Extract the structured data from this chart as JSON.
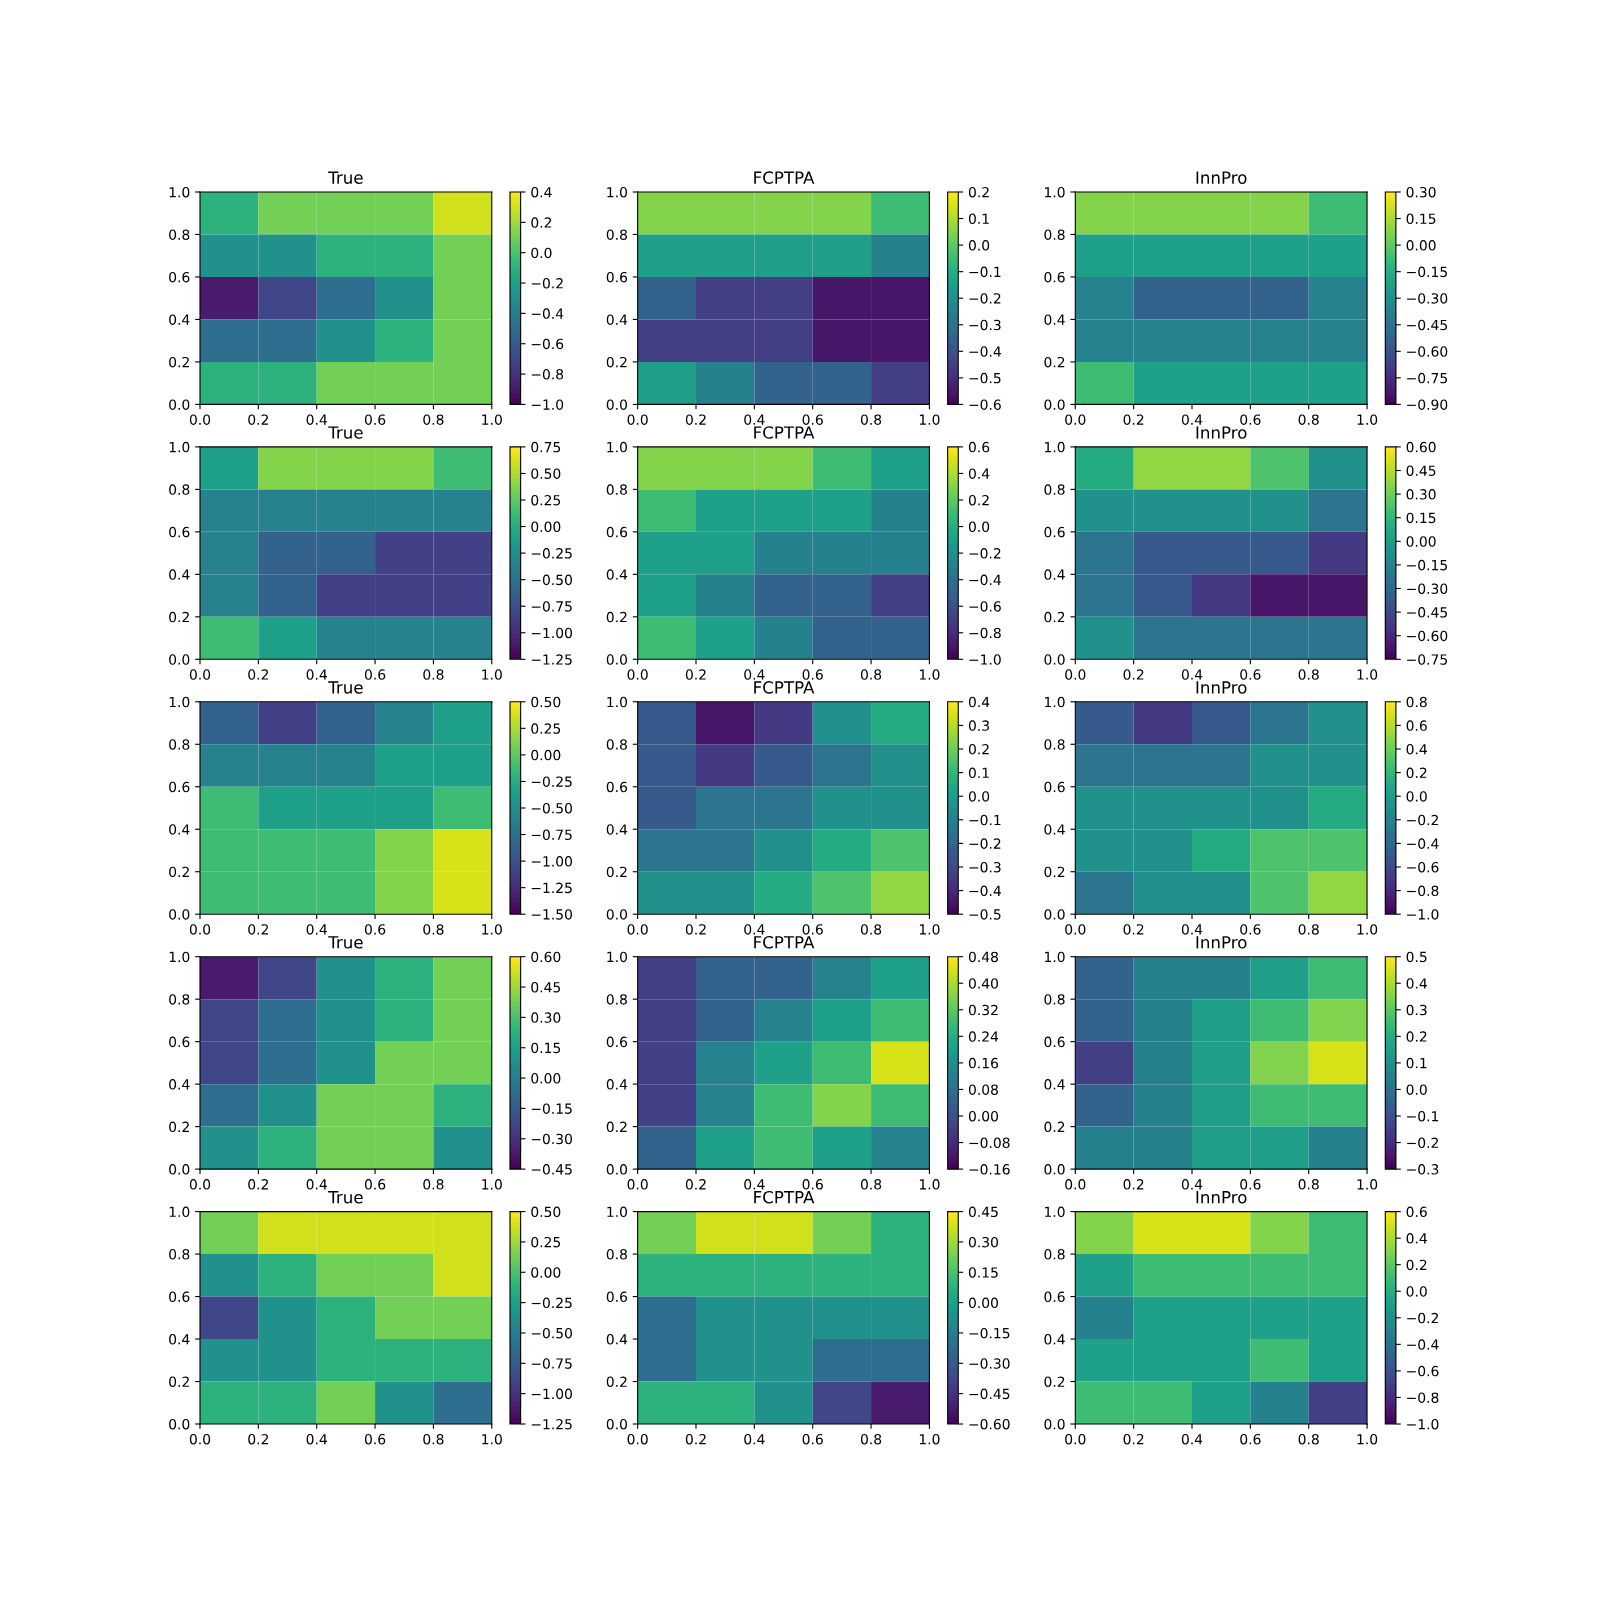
{
  "chart_data": [
    {
      "type": "heatmap",
      "title": "True",
      "x": [
        0.1,
        0.3,
        0.5,
        0.7,
        0.9
      ],
      "y": [
        0.9,
        0.7,
        0.5,
        0.3,
        0.1
      ],
      "xlim": [
        0,
        1
      ],
      "ylim": [
        0,
        1
      ],
      "xticks": [
        {
          "value": 0,
          "label": "0.0"
        },
        {
          "value": 0.2,
          "label": "0.2"
        },
        {
          "value": 0.4,
          "label": "0.4"
        },
        {
          "value": 0.6,
          "label": "0.6"
        },
        {
          "value": 0.8,
          "label": "0.8"
        },
        {
          "value": 1,
          "label": "1.0"
        }
      ],
      "yticks": [
        {
          "value": 0,
          "label": "0.0"
        },
        {
          "value": 0.2,
          "label": "0.2"
        },
        {
          "value": 0.4,
          "label": "0.4"
        },
        {
          "value": 0.6,
          "label": "0.6"
        },
        {
          "value": 0.8,
          "label": "0.8"
        },
        {
          "value": 1,
          "label": "1.0"
        }
      ],
      "clim": [
        -1.0,
        0.4
      ],
      "cticks": [
        {
          "value": -1.0,
          "label": "−1.0"
        },
        {
          "value": -0.8,
          "label": "−0.8"
        },
        {
          "value": -0.6,
          "label": "−0.6"
        },
        {
          "value": -0.4,
          "label": "−0.4"
        },
        {
          "value": -0.2,
          "label": "−0.2"
        },
        {
          "value": 0,
          "label": "0.0"
        },
        {
          "value": 0.2,
          "label": "0.2"
        },
        {
          "value": 0.4,
          "label": "0.4"
        }
      ],
      "cells": [
        [
          -0.1,
          0.1,
          0.1,
          0.1,
          0.3
        ],
        [
          -0.3,
          -0.3,
          -0.1,
          -0.1,
          0.1
        ],
        [
          -0.9,
          -0.7,
          -0.5,
          -0.3,
          0.1
        ],
        [
          -0.5,
          -0.5,
          -0.3,
          -0.1,
          0.1
        ],
        [
          -0.1,
          -0.1,
          0.1,
          0.1,
          0.1
        ]
      ]
    },
    {
      "type": "heatmap",
      "title": "FCPTPA",
      "x": [
        0.1,
        0.3,
        0.5,
        0.7,
        0.9
      ],
      "y": [
        0.9,
        0.7,
        0.5,
        0.3,
        0.1
      ],
      "xlim": [
        0,
        1
      ],
      "ylim": [
        0,
        1
      ],
      "xticks": [
        {
          "value": 0,
          "label": "0.0"
        },
        {
          "value": 0.2,
          "label": "0.2"
        },
        {
          "value": 0.4,
          "label": "0.4"
        },
        {
          "value": 0.6,
          "label": "0.6"
        },
        {
          "value": 0.8,
          "label": "0.8"
        },
        {
          "value": 1,
          "label": "1.0"
        }
      ],
      "yticks": [
        {
          "value": 0,
          "label": "0.0"
        },
        {
          "value": 0.2,
          "label": "0.2"
        },
        {
          "value": 0.4,
          "label": "0.4"
        },
        {
          "value": 0.6,
          "label": "0.6"
        },
        {
          "value": 0.8,
          "label": "0.8"
        },
        {
          "value": 1,
          "label": "1.0"
        }
      ],
      "clim": [
        -0.6,
        0.2
      ],
      "cticks": [
        {
          "value": -0.6,
          "label": "−0.6"
        },
        {
          "value": -0.5,
          "label": "−0.5"
        },
        {
          "value": -0.4,
          "label": "−0.4"
        },
        {
          "value": -0.3,
          "label": "−0.3"
        },
        {
          "value": -0.2,
          "label": "−0.2"
        },
        {
          "value": -0.1,
          "label": "−0.1"
        },
        {
          "value": 0,
          "label": "0.0"
        },
        {
          "value": 0.1,
          "label": "0.1"
        },
        {
          "value": 0.2,
          "label": "0.2"
        }
      ],
      "cells": [
        [
          0.05,
          0.05,
          0.05,
          0.05,
          -0.05
        ],
        [
          -0.15,
          -0.15,
          -0.15,
          -0.15,
          -0.25
        ],
        [
          -0.35,
          -0.45,
          -0.45,
          -0.55,
          -0.55
        ],
        [
          -0.45,
          -0.45,
          -0.45,
          -0.55,
          -0.55
        ],
        [
          -0.15,
          -0.25,
          -0.35,
          -0.35,
          -0.45
        ]
      ]
    },
    {
      "type": "heatmap",
      "title": "InnPro",
      "x": [
        0.1,
        0.3,
        0.5,
        0.7,
        0.9
      ],
      "y": [
        0.9,
        0.7,
        0.5,
        0.3,
        0.1
      ],
      "xlim": [
        0,
        1
      ],
      "ylim": [
        0,
        1
      ],
      "xticks": [
        {
          "value": 0,
          "label": "0.0"
        },
        {
          "value": 0.2,
          "label": "0.2"
        },
        {
          "value": 0.4,
          "label": "0.4"
        },
        {
          "value": 0.6,
          "label": "0.6"
        },
        {
          "value": 0.8,
          "label": "0.8"
        },
        {
          "value": 1,
          "label": "1.0"
        }
      ],
      "yticks": [
        {
          "value": 0,
          "label": "0.0"
        },
        {
          "value": 0.2,
          "label": "0.2"
        },
        {
          "value": 0.4,
          "label": "0.4"
        },
        {
          "value": 0.6,
          "label": "0.6"
        },
        {
          "value": 0.8,
          "label": "0.8"
        },
        {
          "value": 1,
          "label": "1.0"
        }
      ],
      "clim": [
        -0.9,
        0.3
      ],
      "cticks": [
        {
          "value": -0.9,
          "label": "−0.90"
        },
        {
          "value": -0.75,
          "label": "−0.75"
        },
        {
          "value": -0.6,
          "label": "−0.60"
        },
        {
          "value": -0.45,
          "label": "−0.45"
        },
        {
          "value": -0.3,
          "label": "−0.30"
        },
        {
          "value": -0.15,
          "label": "−0.15"
        },
        {
          "value": 0,
          "label": "0.00"
        },
        {
          "value": 0.15,
          "label": "0.15"
        },
        {
          "value": 0.3,
          "label": "0.30"
        }
      ],
      "cells": [
        [
          0.075,
          0.075,
          0.075,
          0.075,
          -0.075
        ],
        [
          -0.225,
          -0.225,
          -0.225,
          -0.225,
          -0.225
        ],
        [
          -0.375,
          -0.525,
          -0.525,
          -0.525,
          -0.375
        ],
        [
          -0.375,
          -0.375,
          -0.375,
          -0.375,
          -0.375
        ],
        [
          -0.075,
          -0.225,
          -0.225,
          -0.225,
          -0.225
        ]
      ]
    },
    {
      "type": "heatmap",
      "title": "True",
      "x": [
        0.1,
        0.3,
        0.5,
        0.7,
        0.9
      ],
      "y": [
        0.9,
        0.7,
        0.5,
        0.3,
        0.1
      ],
      "xlim": [
        0,
        1
      ],
      "ylim": [
        0,
        1
      ],
      "xticks": [
        {
          "value": 0,
          "label": "0.0"
        },
        {
          "value": 0.2,
          "label": "0.2"
        },
        {
          "value": 0.4,
          "label": "0.4"
        },
        {
          "value": 0.6,
          "label": "0.6"
        },
        {
          "value": 0.8,
          "label": "0.8"
        },
        {
          "value": 1,
          "label": "1.0"
        }
      ],
      "yticks": [
        {
          "value": 0,
          "label": "0.0"
        },
        {
          "value": 0.2,
          "label": "0.2"
        },
        {
          "value": 0.4,
          "label": "0.4"
        },
        {
          "value": 0.6,
          "label": "0.6"
        },
        {
          "value": 0.8,
          "label": "0.8"
        },
        {
          "value": 1,
          "label": "1.0"
        }
      ],
      "clim": [
        -1.25,
        0.75
      ],
      "cticks": [
        {
          "value": -1.25,
          "label": "−1.25"
        },
        {
          "value": -1.0,
          "label": "−1.00"
        },
        {
          "value": -0.75,
          "label": "−0.75"
        },
        {
          "value": -0.5,
          "label": "−0.50"
        },
        {
          "value": -0.25,
          "label": "−0.25"
        },
        {
          "value": 0,
          "label": "0.00"
        },
        {
          "value": 0.25,
          "label": "0.25"
        },
        {
          "value": 0.5,
          "label": "0.50"
        },
        {
          "value": 0.75,
          "label": "0.75"
        }
      ],
      "cells": [
        [
          -0.125,
          0.375,
          0.375,
          0.375,
          0.125
        ],
        [
          -0.375,
          -0.375,
          -0.375,
          -0.375,
          -0.375
        ],
        [
          -0.375,
          -0.625,
          -0.625,
          -0.875,
          -0.875
        ],
        [
          -0.375,
          -0.625,
          -0.875,
          -0.875,
          -0.875
        ],
        [
          0.125,
          -0.125,
          -0.375,
          -0.375,
          -0.375
        ]
      ]
    },
    {
      "type": "heatmap",
      "title": "FCPTPA",
      "x": [
        0.1,
        0.3,
        0.5,
        0.7,
        0.9
      ],
      "y": [
        0.9,
        0.7,
        0.5,
        0.3,
        0.1
      ],
      "xlim": [
        0,
        1
      ],
      "ylim": [
        0,
        1
      ],
      "xticks": [
        {
          "value": 0,
          "label": "0.0"
        },
        {
          "value": 0.2,
          "label": "0.2"
        },
        {
          "value": 0.4,
          "label": "0.4"
        },
        {
          "value": 0.6,
          "label": "0.6"
        },
        {
          "value": 0.8,
          "label": "0.8"
        },
        {
          "value": 1,
          "label": "1.0"
        }
      ],
      "yticks": [
        {
          "value": 0,
          "label": "0.0"
        },
        {
          "value": 0.2,
          "label": "0.2"
        },
        {
          "value": 0.4,
          "label": "0.4"
        },
        {
          "value": 0.6,
          "label": "0.6"
        },
        {
          "value": 0.8,
          "label": "0.8"
        },
        {
          "value": 1,
          "label": "1.0"
        }
      ],
      "clim": [
        -1.0,
        0.6
      ],
      "cticks": [
        {
          "value": -1.0,
          "label": "−1.0"
        },
        {
          "value": -0.8,
          "label": "−0.8"
        },
        {
          "value": -0.6,
          "label": "−0.6"
        },
        {
          "value": -0.4,
          "label": "−0.4"
        },
        {
          "value": -0.2,
          "label": "−0.2"
        },
        {
          "value": 0,
          "label": "0.0"
        },
        {
          "value": 0.2,
          "label": "0.2"
        },
        {
          "value": 0.4,
          "label": "0.4"
        },
        {
          "value": 0.6,
          "label": "0.6"
        }
      ],
      "cells": [
        [
          0.3,
          0.3,
          0.3,
          0.1,
          -0.1
        ],
        [
          0.1,
          -0.1,
          -0.1,
          -0.1,
          -0.3
        ],
        [
          -0.1,
          -0.1,
          -0.3,
          -0.3,
          -0.3
        ],
        [
          -0.1,
          -0.3,
          -0.5,
          -0.5,
          -0.7
        ],
        [
          0.1,
          -0.1,
          -0.3,
          -0.5,
          -0.5
        ]
      ]
    },
    {
      "type": "heatmap",
      "title": "InnPro",
      "x": [
        0.1,
        0.3,
        0.5,
        0.7,
        0.9
      ],
      "y": [
        0.9,
        0.7,
        0.5,
        0.3,
        0.1
      ],
      "xlim": [
        0,
        1
      ],
      "ylim": [
        0,
        1
      ],
      "xticks": [
        {
          "value": 0,
          "label": "0.0"
        },
        {
          "value": 0.2,
          "label": "0.2"
        },
        {
          "value": 0.4,
          "label": "0.4"
        },
        {
          "value": 0.6,
          "label": "0.6"
        },
        {
          "value": 0.8,
          "label": "0.8"
        },
        {
          "value": 1,
          "label": "1.0"
        }
      ],
      "yticks": [
        {
          "value": 0,
          "label": "0.0"
        },
        {
          "value": 0.2,
          "label": "0.2"
        },
        {
          "value": 0.4,
          "label": "0.4"
        },
        {
          "value": 0.6,
          "label": "0.6"
        },
        {
          "value": 0.8,
          "label": "0.8"
        },
        {
          "value": 1,
          "label": "1.0"
        }
      ],
      "clim": [
        -0.75,
        0.6
      ],
      "cticks": [
        {
          "value": -0.75,
          "label": "−0.75"
        },
        {
          "value": -0.6,
          "label": "−0.60"
        },
        {
          "value": -0.45,
          "label": "−0.45"
        },
        {
          "value": -0.3,
          "label": "−0.30"
        },
        {
          "value": -0.15,
          "label": "−0.15"
        },
        {
          "value": 0,
          "label": "0.00"
        },
        {
          "value": 0.15,
          "label": "0.15"
        },
        {
          "value": 0.3,
          "label": "0.30"
        },
        {
          "value": 0.45,
          "label": "0.45"
        },
        {
          "value": 0.6,
          "label": "0.60"
        }
      ],
      "cells": [
        [
          0.075,
          0.375,
          0.375,
          0.225,
          -0.075
        ],
        [
          -0.075,
          -0.075,
          -0.075,
          -0.075,
          -0.225
        ],
        [
          -0.225,
          -0.375,
          -0.375,
          -0.375,
          -0.525
        ],
        [
          -0.225,
          -0.375,
          -0.525,
          -0.675,
          -0.675
        ],
        [
          -0.075,
          -0.225,
          -0.225,
          -0.225,
          -0.225
        ]
      ]
    },
    {
      "type": "heatmap",
      "title": "True",
      "x": [
        0.1,
        0.3,
        0.5,
        0.7,
        0.9
      ],
      "y": [
        0.9,
        0.7,
        0.5,
        0.3,
        0.1
      ],
      "xlim": [
        0,
        1
      ],
      "ylim": [
        0,
        1
      ],
      "xticks": [
        {
          "value": 0,
          "label": "0.0"
        },
        {
          "value": 0.2,
          "label": "0.2"
        },
        {
          "value": 0.4,
          "label": "0.4"
        },
        {
          "value": 0.6,
          "label": "0.6"
        },
        {
          "value": 0.8,
          "label": "0.8"
        },
        {
          "value": 1,
          "label": "1.0"
        }
      ],
      "yticks": [
        {
          "value": 0,
          "label": "0.0"
        },
        {
          "value": 0.2,
          "label": "0.2"
        },
        {
          "value": 0.4,
          "label": "0.4"
        },
        {
          "value": 0.6,
          "label": "0.6"
        },
        {
          "value": 0.8,
          "label": "0.8"
        },
        {
          "value": 1,
          "label": "1.0"
        }
      ],
      "clim": [
        -1.5,
        0.5
      ],
      "cticks": [
        {
          "value": -1.5,
          "label": "−1.50"
        },
        {
          "value": -1.25,
          "label": "−1.25"
        },
        {
          "value": -1.0,
          "label": "−1.00"
        },
        {
          "value": -0.75,
          "label": "−0.75"
        },
        {
          "value": -0.5,
          "label": "−0.50"
        },
        {
          "value": -0.25,
          "label": "−0.25"
        },
        {
          "value": 0,
          "label": "0.00"
        },
        {
          "value": 0.25,
          "label": "0.25"
        },
        {
          "value": 0.5,
          "label": "0.50"
        }
      ],
      "cells": [
        [
          -0.875,
          -1.125,
          -0.875,
          -0.625,
          -0.375
        ],
        [
          -0.625,
          -0.625,
          -0.625,
          -0.375,
          -0.375
        ],
        [
          -0.125,
          -0.375,
          -0.375,
          -0.375,
          -0.125
        ],
        [
          -0.125,
          -0.125,
          -0.125,
          0.125,
          0.375
        ],
        [
          -0.125,
          -0.125,
          -0.125,
          0.125,
          0.375
        ]
      ]
    },
    {
      "type": "heatmap",
      "title": "FCPTPA",
      "x": [
        0.1,
        0.3,
        0.5,
        0.7,
        0.9
      ],
      "y": [
        0.9,
        0.7,
        0.5,
        0.3,
        0.1
      ],
      "xlim": [
        0,
        1
      ],
      "ylim": [
        0,
        1
      ],
      "xticks": [
        {
          "value": 0,
          "label": "0.0"
        },
        {
          "value": 0.2,
          "label": "0.2"
        },
        {
          "value": 0.4,
          "label": "0.4"
        },
        {
          "value": 0.6,
          "label": "0.6"
        },
        {
          "value": 0.8,
          "label": "0.8"
        },
        {
          "value": 1,
          "label": "1.0"
        }
      ],
      "yticks": [
        {
          "value": 0,
          "label": "0.0"
        },
        {
          "value": 0.2,
          "label": "0.2"
        },
        {
          "value": 0.4,
          "label": "0.4"
        },
        {
          "value": 0.6,
          "label": "0.6"
        },
        {
          "value": 0.8,
          "label": "0.8"
        },
        {
          "value": 1,
          "label": "1.0"
        }
      ],
      "clim": [
        -0.5,
        0.4
      ],
      "cticks": [
        {
          "value": -0.5,
          "label": "−0.5"
        },
        {
          "value": -0.4,
          "label": "−0.4"
        },
        {
          "value": -0.3,
          "label": "−0.3"
        },
        {
          "value": -0.2,
          "label": "−0.2"
        },
        {
          "value": -0.1,
          "label": "−0.1"
        },
        {
          "value": 0,
          "label": "0.0"
        },
        {
          "value": 0.1,
          "label": "0.1"
        },
        {
          "value": 0.2,
          "label": "0.2"
        },
        {
          "value": 0.3,
          "label": "0.3"
        },
        {
          "value": 0.4,
          "label": "0.4"
        }
      ],
      "cells": [
        [
          -0.25,
          -0.45,
          -0.35,
          -0.05,
          0.05
        ],
        [
          -0.25,
          -0.35,
          -0.25,
          -0.15,
          -0.05
        ],
        [
          -0.25,
          -0.15,
          -0.15,
          -0.05,
          -0.05
        ],
        [
          -0.15,
          -0.15,
          -0.05,
          0.05,
          0.15
        ],
        [
          -0.05,
          -0.05,
          0.05,
          0.15,
          0.25
        ]
      ]
    },
    {
      "type": "heatmap",
      "title": "InnPro",
      "x": [
        0.1,
        0.3,
        0.5,
        0.7,
        0.9
      ],
      "y": [
        0.9,
        0.7,
        0.5,
        0.3,
        0.1
      ],
      "xlim": [
        0,
        1
      ],
      "ylim": [
        0,
        1
      ],
      "xticks": [
        {
          "value": 0,
          "label": "0.0"
        },
        {
          "value": 0.2,
          "label": "0.2"
        },
        {
          "value": 0.4,
          "label": "0.4"
        },
        {
          "value": 0.6,
          "label": "0.6"
        },
        {
          "value": 0.8,
          "label": "0.8"
        },
        {
          "value": 1,
          "label": "1.0"
        }
      ],
      "yticks": [
        {
          "value": 0,
          "label": "0.0"
        },
        {
          "value": 0.2,
          "label": "0.2"
        },
        {
          "value": 0.4,
          "label": "0.4"
        },
        {
          "value": 0.6,
          "label": "0.6"
        },
        {
          "value": 0.8,
          "label": "0.8"
        },
        {
          "value": 1,
          "label": "1.0"
        }
      ],
      "clim": [
        -1.0,
        0.8
      ],
      "cticks": [
        {
          "value": -1.0,
          "label": "−1.0"
        },
        {
          "value": -0.8,
          "label": "−0.8"
        },
        {
          "value": -0.6,
          "label": "−0.6"
        },
        {
          "value": -0.4,
          "label": "−0.4"
        },
        {
          "value": -0.2,
          "label": "−0.2"
        },
        {
          "value": 0,
          "label": "0.0"
        },
        {
          "value": 0.2,
          "label": "0.2"
        },
        {
          "value": 0.4,
          "label": "0.4"
        },
        {
          "value": 0.6,
          "label": "0.6"
        },
        {
          "value": 0.8,
          "label": "0.8"
        }
      ],
      "cells": [
        [
          -0.5,
          -0.7,
          -0.5,
          -0.3,
          -0.1
        ],
        [
          -0.3,
          -0.3,
          -0.3,
          -0.1,
          -0.1
        ],
        [
          -0.1,
          -0.1,
          -0.1,
          -0.1,
          0.1
        ],
        [
          -0.1,
          -0.1,
          0.1,
          0.3,
          0.3
        ],
        [
          -0.3,
          -0.1,
          -0.1,
          0.3,
          0.5
        ]
      ]
    },
    {
      "type": "heatmap",
      "title": "True",
      "x": [
        0.1,
        0.3,
        0.5,
        0.7,
        0.9
      ],
      "y": [
        0.9,
        0.7,
        0.5,
        0.3,
        0.1
      ],
      "xlim": [
        0,
        1
      ],
      "ylim": [
        0,
        1
      ],
      "xticks": [
        {
          "value": 0,
          "label": "0.0"
        },
        {
          "value": 0.2,
          "label": "0.2"
        },
        {
          "value": 0.4,
          "label": "0.4"
        },
        {
          "value": 0.6,
          "label": "0.6"
        },
        {
          "value": 0.8,
          "label": "0.8"
        },
        {
          "value": 1,
          "label": "1.0"
        }
      ],
      "yticks": [
        {
          "value": 0,
          "label": "0.0"
        },
        {
          "value": 0.2,
          "label": "0.2"
        },
        {
          "value": 0.4,
          "label": "0.4"
        },
        {
          "value": 0.6,
          "label": "0.6"
        },
        {
          "value": 0.8,
          "label": "0.8"
        },
        {
          "value": 1,
          "label": "1.0"
        }
      ],
      "clim": [
        -0.45,
        0.6
      ],
      "cticks": [
        {
          "value": -0.45,
          "label": "−0.45"
        },
        {
          "value": -0.3,
          "label": "−0.30"
        },
        {
          "value": -0.15,
          "label": "−0.15"
        },
        {
          "value": 0,
          "label": "0.00"
        },
        {
          "value": 0.15,
          "label": "0.15"
        },
        {
          "value": 0.3,
          "label": "0.30"
        },
        {
          "value": 0.45,
          "label": "0.45"
        },
        {
          "value": 0.6,
          "label": "0.60"
        }
      ],
      "cells": [
        [
          -0.375,
          -0.225,
          0.075,
          0.225,
          0.375
        ],
        [
          -0.225,
          -0.075,
          0.075,
          0.225,
          0.375
        ],
        [
          -0.225,
          -0.075,
          0.075,
          0.375,
          0.375
        ],
        [
          -0.075,
          0.075,
          0.375,
          0.375,
          0.225
        ],
        [
          0.075,
          0.225,
          0.375,
          0.375,
          0.075
        ]
      ]
    },
    {
      "type": "heatmap",
      "title": "FCPTPA",
      "x": [
        0.1,
        0.3,
        0.5,
        0.7,
        0.9
      ],
      "y": [
        0.9,
        0.7,
        0.5,
        0.3,
        0.1
      ],
      "xlim": [
        0,
        1
      ],
      "ylim": [
        0,
        1
      ],
      "xticks": [
        {
          "value": 0,
          "label": "0.0"
        },
        {
          "value": 0.2,
          "label": "0.2"
        },
        {
          "value": 0.4,
          "label": "0.4"
        },
        {
          "value": 0.6,
          "label": "0.6"
        },
        {
          "value": 0.8,
          "label": "0.8"
        },
        {
          "value": 1,
          "label": "1.0"
        }
      ],
      "yticks": [
        {
          "value": 0,
          "label": "0.0"
        },
        {
          "value": 0.2,
          "label": "0.2"
        },
        {
          "value": 0.4,
          "label": "0.4"
        },
        {
          "value": 0.6,
          "label": "0.6"
        },
        {
          "value": 0.8,
          "label": "0.8"
        },
        {
          "value": 1,
          "label": "1.0"
        }
      ],
      "clim": [
        -0.16,
        0.48
      ],
      "cticks": [
        {
          "value": -0.16,
          "label": "−0.16"
        },
        {
          "value": -0.08,
          "label": "−0.08"
        },
        {
          "value": 0,
          "label": "0.00"
        },
        {
          "value": 0.08,
          "label": "0.08"
        },
        {
          "value": 0.16,
          "label": "0.16"
        },
        {
          "value": 0.24,
          "label": "0.24"
        },
        {
          "value": 0.32,
          "label": "0.32"
        },
        {
          "value": 0.4,
          "label": "0.40"
        },
        {
          "value": 0.48,
          "label": "0.48"
        }
      ],
      "cells": [
        [
          -0.04,
          0.04,
          0.04,
          0.12,
          0.2
        ],
        [
          -0.04,
          0.04,
          0.12,
          0.2,
          0.28
        ],
        [
          -0.04,
          0.12,
          0.2,
          0.28,
          0.44
        ],
        [
          -0.04,
          0.12,
          0.28,
          0.36,
          0.28
        ],
        [
          0.04,
          0.2,
          0.28,
          0.2,
          0.12
        ]
      ]
    },
    {
      "type": "heatmap",
      "title": "InnPro",
      "x": [
        0.1,
        0.3,
        0.5,
        0.7,
        0.9
      ],
      "y": [
        0.9,
        0.7,
        0.5,
        0.3,
        0.1
      ],
      "xlim": [
        0,
        1
      ],
      "ylim": [
        0,
        1
      ],
      "xticks": [
        {
          "value": 0,
          "label": "0.0"
        },
        {
          "value": 0.2,
          "label": "0.2"
        },
        {
          "value": 0.4,
          "label": "0.4"
        },
        {
          "value": 0.6,
          "label": "0.6"
        },
        {
          "value": 0.8,
          "label": "0.8"
        },
        {
          "value": 1,
          "label": "1.0"
        }
      ],
      "yticks": [
        {
          "value": 0,
          "label": "0.0"
        },
        {
          "value": 0.2,
          "label": "0.2"
        },
        {
          "value": 0.4,
          "label": "0.4"
        },
        {
          "value": 0.6,
          "label": "0.6"
        },
        {
          "value": 0.8,
          "label": "0.8"
        },
        {
          "value": 1,
          "label": "1.0"
        }
      ],
      "clim": [
        -0.3,
        0.5
      ],
      "cticks": [
        {
          "value": -0.3,
          "label": "−0.3"
        },
        {
          "value": -0.2,
          "label": "−0.2"
        },
        {
          "value": -0.1,
          "label": "−0.1"
        },
        {
          "value": 0,
          "label": "0.0"
        },
        {
          "value": 0.1,
          "label": "0.1"
        },
        {
          "value": 0.2,
          "label": "0.2"
        },
        {
          "value": 0.3,
          "label": "0.3"
        },
        {
          "value": 0.4,
          "label": "0.4"
        },
        {
          "value": 0.5,
          "label": "0.5"
        }
      ],
      "cells": [
        [
          -0.05,
          0.05,
          0.05,
          0.15,
          0.25
        ],
        [
          -0.05,
          0.05,
          0.15,
          0.25,
          0.35
        ],
        [
          -0.15,
          0.05,
          0.15,
          0.35,
          0.45
        ],
        [
          -0.05,
          0.05,
          0.15,
          0.25,
          0.25
        ],
        [
          0.05,
          0.05,
          0.15,
          0.15,
          0.05
        ]
      ]
    },
    {
      "type": "heatmap",
      "title": "True",
      "x": [
        0.1,
        0.3,
        0.5,
        0.7,
        0.9
      ],
      "y": [
        0.9,
        0.7,
        0.5,
        0.3,
        0.1
      ],
      "xlim": [
        0,
        1
      ],
      "ylim": [
        0,
        1
      ],
      "xticks": [
        {
          "value": 0,
          "label": "0.0"
        },
        {
          "value": 0.2,
          "label": "0.2"
        },
        {
          "value": 0.4,
          "label": "0.4"
        },
        {
          "value": 0.6,
          "label": "0.6"
        },
        {
          "value": 0.8,
          "label": "0.8"
        },
        {
          "value": 1,
          "label": "1.0"
        }
      ],
      "yticks": [
        {
          "value": 0,
          "label": "0.0"
        },
        {
          "value": 0.2,
          "label": "0.2"
        },
        {
          "value": 0.4,
          "label": "0.4"
        },
        {
          "value": 0.6,
          "label": "0.6"
        },
        {
          "value": 0.8,
          "label": "0.8"
        },
        {
          "value": 1,
          "label": "1.0"
        }
      ],
      "clim": [
        -1.25,
        0.5
      ],
      "cticks": [
        {
          "value": -1.25,
          "label": "−1.25"
        },
        {
          "value": -1.0,
          "label": "−1.00"
        },
        {
          "value": -0.75,
          "label": "−0.75"
        },
        {
          "value": -0.5,
          "label": "−0.50"
        },
        {
          "value": -0.25,
          "label": "−0.25"
        },
        {
          "value": 0,
          "label": "0.00"
        },
        {
          "value": 0.25,
          "label": "0.25"
        },
        {
          "value": 0.5,
          "label": "0.50"
        }
      ],
      "cells": [
        [
          0.125,
          0.375,
          0.375,
          0.375,
          0.375
        ],
        [
          -0.375,
          -0.125,
          0.125,
          0.125,
          0.375
        ],
        [
          -0.875,
          -0.375,
          -0.125,
          0.125,
          0.125
        ],
        [
          -0.375,
          -0.375,
          -0.125,
          -0.125,
          -0.125
        ],
        [
          -0.125,
          -0.125,
          0.125,
          -0.375,
          -0.625
        ]
      ]
    },
    {
      "type": "heatmap",
      "title": "FCPTPA",
      "x": [
        0.1,
        0.3,
        0.5,
        0.7,
        0.9
      ],
      "y": [
        0.9,
        0.7,
        0.5,
        0.3,
        0.1
      ],
      "xlim": [
        0,
        1
      ],
      "ylim": [
        0,
        1
      ],
      "xticks": [
        {
          "value": 0,
          "label": "0.0"
        },
        {
          "value": 0.2,
          "label": "0.2"
        },
        {
          "value": 0.4,
          "label": "0.4"
        },
        {
          "value": 0.6,
          "label": "0.6"
        },
        {
          "value": 0.8,
          "label": "0.8"
        },
        {
          "value": 1,
          "label": "1.0"
        }
      ],
      "yticks": [
        {
          "value": 0,
          "label": "0.0"
        },
        {
          "value": 0.2,
          "label": "0.2"
        },
        {
          "value": 0.4,
          "label": "0.4"
        },
        {
          "value": 0.6,
          "label": "0.6"
        },
        {
          "value": 0.8,
          "label": "0.8"
        },
        {
          "value": 1,
          "label": "1.0"
        }
      ],
      "clim": [
        -0.6,
        0.45
      ],
      "cticks": [
        {
          "value": -0.6,
          "label": "−0.60"
        },
        {
          "value": -0.45,
          "label": "−0.45"
        },
        {
          "value": -0.3,
          "label": "−0.30"
        },
        {
          "value": -0.15,
          "label": "−0.15"
        },
        {
          "value": 0,
          "label": "0.00"
        },
        {
          "value": 0.15,
          "label": "0.15"
        },
        {
          "value": 0.3,
          "label": "0.30"
        },
        {
          "value": 0.45,
          "label": "0.45"
        }
      ],
      "cells": [
        [
          0.225,
          0.375,
          0.375,
          0.225,
          0.075
        ],
        [
          0.075,
          0.075,
          0.075,
          0.075,
          0.075
        ],
        [
          -0.225,
          -0.075,
          -0.075,
          -0.075,
          -0.075
        ],
        [
          -0.225,
          -0.075,
          -0.075,
          -0.225,
          -0.225
        ],
        [
          0.075,
          0.075,
          -0.075,
          -0.375,
          -0.525
        ]
      ]
    },
    {
      "type": "heatmap",
      "title": "InnPro",
      "x": [
        0.1,
        0.3,
        0.5,
        0.7,
        0.9
      ],
      "y": [
        0.9,
        0.7,
        0.5,
        0.3,
        0.1
      ],
      "xlim": [
        0,
        1
      ],
      "ylim": [
        0,
        1
      ],
      "xticks": [
        {
          "value": 0,
          "label": "0.0"
        },
        {
          "value": 0.2,
          "label": "0.2"
        },
        {
          "value": 0.4,
          "label": "0.4"
        },
        {
          "value": 0.6,
          "label": "0.6"
        },
        {
          "value": 0.8,
          "label": "0.8"
        },
        {
          "value": 1,
          "label": "1.0"
        }
      ],
      "yticks": [
        {
          "value": 0,
          "label": "0.0"
        },
        {
          "value": 0.2,
          "label": "0.2"
        },
        {
          "value": 0.4,
          "label": "0.4"
        },
        {
          "value": 0.6,
          "label": "0.6"
        },
        {
          "value": 0.8,
          "label": "0.8"
        },
        {
          "value": 1,
          "label": "1.0"
        }
      ],
      "clim": [
        -1.0,
        0.6
      ],
      "cticks": [
        {
          "value": -1.0,
          "label": "−1.0"
        },
        {
          "value": -0.8,
          "label": "−0.8"
        },
        {
          "value": -0.6,
          "label": "−0.6"
        },
        {
          "value": -0.4,
          "label": "−0.4"
        },
        {
          "value": -0.2,
          "label": "−0.2"
        },
        {
          "value": 0,
          "label": "0.0"
        },
        {
          "value": 0.2,
          "label": "0.2"
        },
        {
          "value": 0.4,
          "label": "0.4"
        },
        {
          "value": 0.6,
          "label": "0.6"
        }
      ],
      "cells": [
        [
          0.3,
          0.5,
          0.5,
          0.3,
          0.1
        ],
        [
          -0.1,
          0.1,
          0.1,
          0.1,
          0.1
        ],
        [
          -0.3,
          -0.1,
          -0.1,
          -0.1,
          -0.1
        ],
        [
          -0.1,
          -0.1,
          -0.1,
          0.1,
          -0.1
        ],
        [
          0.1,
          0.1,
          -0.1,
          -0.3,
          -0.7
        ]
      ]
    }
  ]
}
